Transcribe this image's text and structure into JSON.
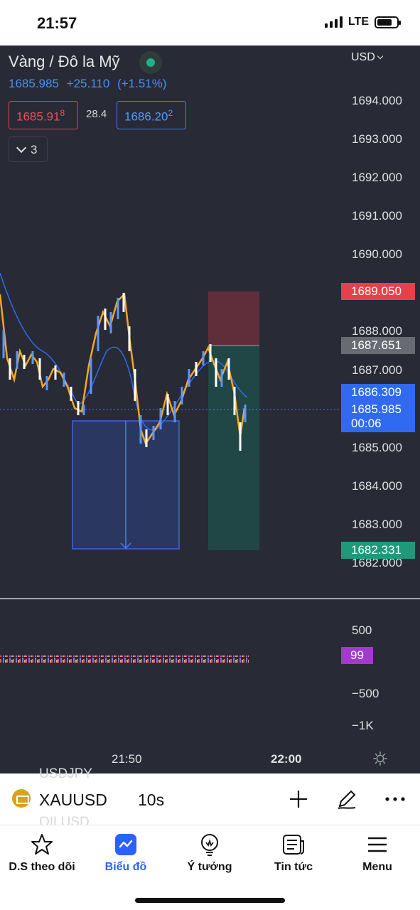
{
  "status_bar": {
    "time": "21:57",
    "network": "LTE"
  },
  "chart": {
    "symbol_title": "Vàng / Đô la Mỹ",
    "last_price": "1685.985",
    "change": "+25.110",
    "change_pct": "(+1.51%)",
    "bid": "1685.91",
    "bid_pip": "8",
    "spread": "28.4",
    "ask": "1686.20",
    "ask_pip": "2",
    "indicator_count": "3",
    "currency": "USD",
    "price_axis": [
      "1694.000",
      "1693.000",
      "1692.000",
      "1691.000",
      "1690.000",
      "1688.000",
      "1687.000",
      "1685.000",
      "1684.000",
      "1683.000",
      "1682.000"
    ],
    "tags": {
      "take_profit": "1689.050",
      "entry": "1687.651",
      "ma": "1686.309",
      "last": "1685.985",
      "countdown": "00:06",
      "stop_loss": "1682.331"
    },
    "volume_axis": [
      "500",
      "−500",
      "−1K"
    ],
    "volume_value": "99",
    "time_axis": [
      "21:50",
      "22:00"
    ],
    "colors": {
      "background": "#282a36",
      "up": "#5b95ff",
      "down": "#ffffff",
      "ma_line": "#2f6af0",
      "price_line": "#f5a623",
      "take_profit": "#e8404b",
      "stop_loss": "#1e9a7a"
    }
  },
  "toolbar": {
    "ghost_top": "USDJPY",
    "ghost_bottom": "OILUSD",
    "ticker": "XAUUSD",
    "interval": "10s",
    "icons": [
      "plus-icon",
      "pen-icon",
      "more-icon"
    ]
  },
  "tabs": [
    {
      "label": "D.S theo dõi",
      "icon": "star-icon"
    },
    {
      "label": "Biểu đồ",
      "icon": "chart-icon",
      "active": true
    },
    {
      "label": "Ý tưởng",
      "icon": "lightbulb-icon"
    },
    {
      "label": "Tin tức",
      "icon": "news-icon"
    },
    {
      "label": "Menu",
      "icon": "menu-icon"
    }
  ]
}
